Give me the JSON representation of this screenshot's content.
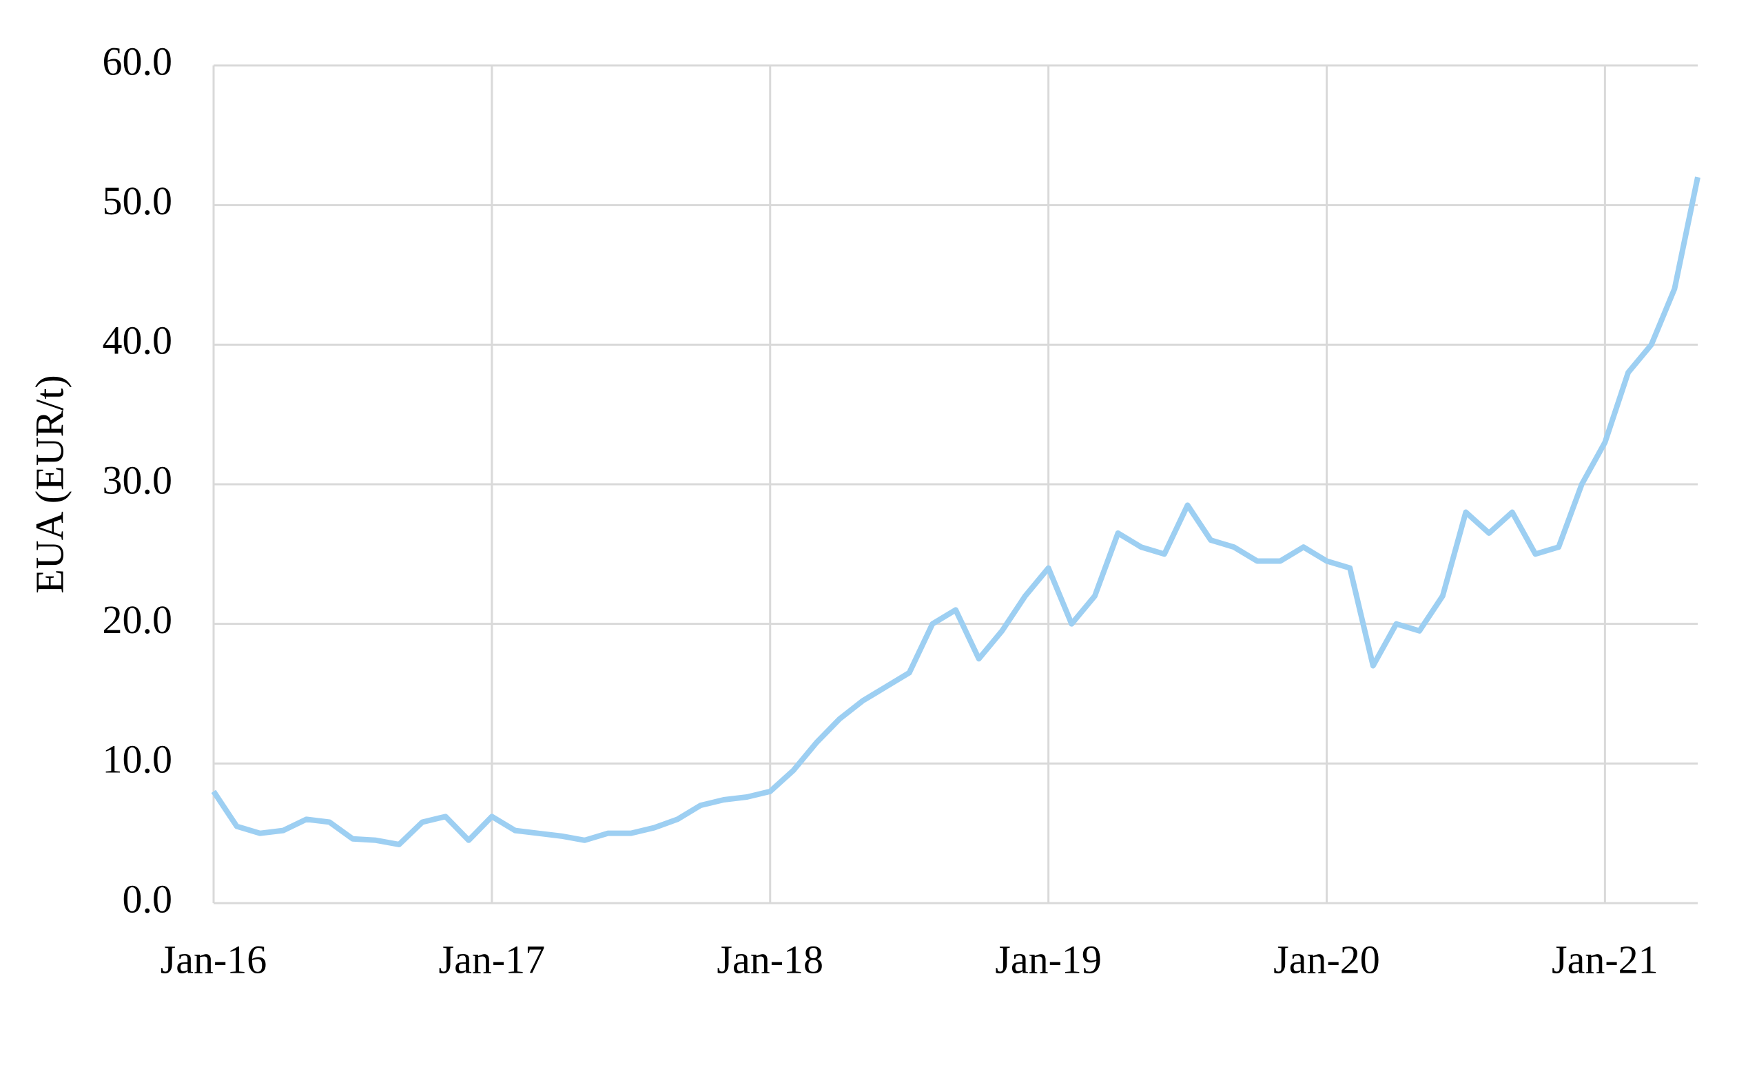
{
  "chart_data": {
    "type": "line",
    "y_label": "EUA (EUR/t)",
    "categories": [
      "Jan-16",
      null,
      null,
      null,
      null,
      null,
      null,
      null,
      null,
      null,
      null,
      null,
      "Jan-17",
      null,
      null,
      null,
      null,
      null,
      null,
      null,
      null,
      null,
      null,
      null,
      "Jan-18",
      null,
      null,
      null,
      null,
      null,
      null,
      null,
      null,
      null,
      null,
      null,
      "Jan-19",
      null,
      null,
      null,
      null,
      null,
      null,
      null,
      null,
      null,
      null,
      null,
      "Jan-20",
      null,
      null,
      null,
      null,
      null,
      null,
      null,
      null,
      null,
      null,
      null,
      "Jan-21",
      null,
      null,
      null,
      null
    ],
    "series": [
      {
        "name": "EUA",
        "color": "#9dcff2",
        "values": [
          8,
          5.5,
          5,
          5.2,
          6,
          5.8,
          4.6,
          4.5,
          4.2,
          5.8,
          6.2,
          4.5,
          6.2,
          5.2,
          5,
          4.8,
          4.5,
          5,
          5,
          5.4,
          6,
          7,
          7.4,
          7.6,
          8,
          9.5,
          11.5,
          13.2,
          14.5,
          15.5,
          16.5,
          20,
          21,
          17.5,
          19.5,
          22,
          24,
          20,
          22,
          26.5,
          25.5,
          25,
          28.5,
          26,
          25.5,
          24.5,
          24.5,
          25.5,
          24.5,
          24,
          17,
          20,
          19.5,
          22,
          28,
          26.5,
          28,
          25,
          25.5,
          30,
          33,
          38,
          40,
          44,
          52
        ]
      }
    ],
    "ylim": [
      0,
      60
    ],
    "yticks": [
      {
        "value": 0,
        "label": "0.0"
      },
      {
        "value": 10,
        "label": "10.0"
      },
      {
        "value": 20,
        "label": "20.0"
      },
      {
        "value": 30,
        "label": "30.0"
      },
      {
        "value": 40,
        "label": "40.0"
      },
      {
        "value": 50,
        "label": "50.0"
      },
      {
        "value": 60,
        "label": "60.0"
      }
    ],
    "grid": true
  }
}
